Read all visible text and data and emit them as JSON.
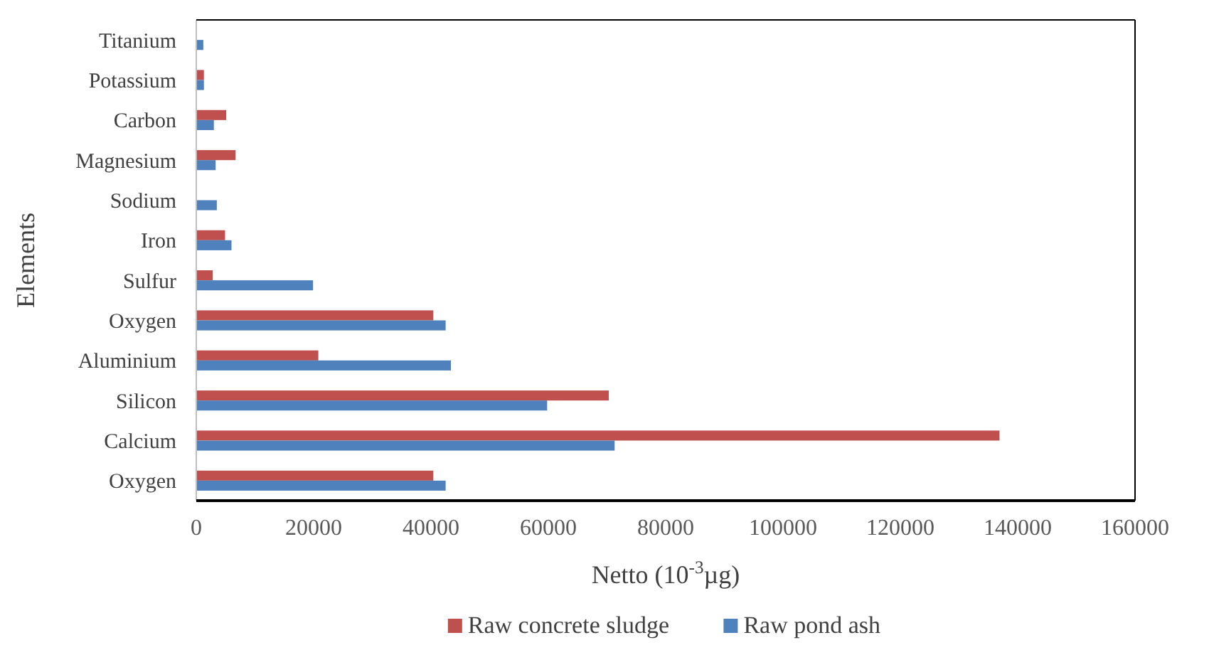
{
  "chart_data": {
    "type": "bar",
    "orientation": "horizontal",
    "xlabel": "Netto (10$^{-3}$µg)",
    "ylabel": "Elements",
    "categories": [
      "Titanium",
      "Potassium",
      "Carbon",
      "Magnesium",
      "Sodium",
      "Iron",
      "Sulfur",
      "Oxygen",
      "Aluminium",
      "Silicon",
      "Calcium",
      "Oxygen"
    ],
    "series": [
      {
        "name": "Raw concrete sludge",
        "color": "#c0504d",
        "values": [
          null,
          1300,
          5100,
          6700,
          null,
          4900,
          2800,
          40400,
          20800,
          70300,
          136900,
          40400
        ]
      },
      {
        "name": "Raw pond ash",
        "color": "#4f81bd",
        "values": [
          1200,
          1300,
          3000,
          3300,
          3500,
          6000,
          19900,
          42500,
          43400,
          59800,
          71300,
          42500
        ]
      }
    ],
    "xlim": [
      0,
      160000
    ],
    "xticks": [
      0,
      20000,
      40000,
      60000,
      80000,
      100000,
      120000,
      140000,
      160000
    ],
    "grid": false,
    "legend": "bottom"
  }
}
